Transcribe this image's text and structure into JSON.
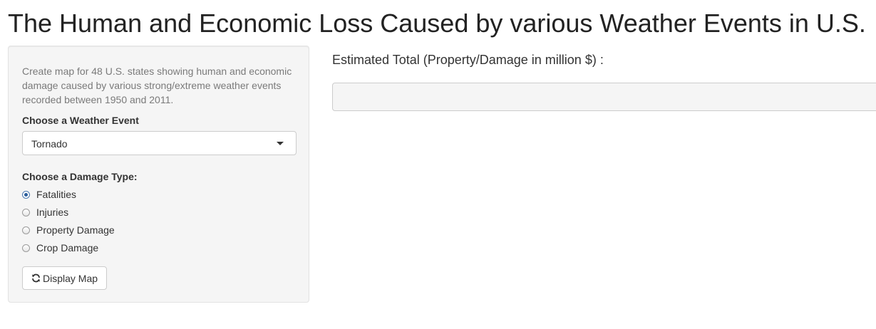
{
  "header": {
    "title": "The Human and Economic Loss Caused by various Weather Events in U.S."
  },
  "sidebar": {
    "description": "Create map for 48 U.S. states showing human and economic damage caused by various strong/extreme weather events recorded between 1950 and 2011.",
    "event_label": "Choose a Weather Event",
    "event_selected": "Tornado",
    "damage_label": "Choose a Damage Type:",
    "damage_options": [
      {
        "label": "Fatalities",
        "checked": true
      },
      {
        "label": "Injuries",
        "checked": false
      },
      {
        "label": "Property Damage",
        "checked": false
      },
      {
        "label": "Crop Damage",
        "checked": false
      }
    ],
    "button_label": "Display Map",
    "button_icon": "refresh-icon"
  },
  "main": {
    "output_label": "Estimated Total (Property/Damage in million $) :",
    "output_value": ""
  },
  "colors": {
    "panel_background": "#f5f5f5",
    "radio_checked": "#2a5d9b",
    "text": "#333333",
    "muted_text": "#7a7a7a"
  }
}
